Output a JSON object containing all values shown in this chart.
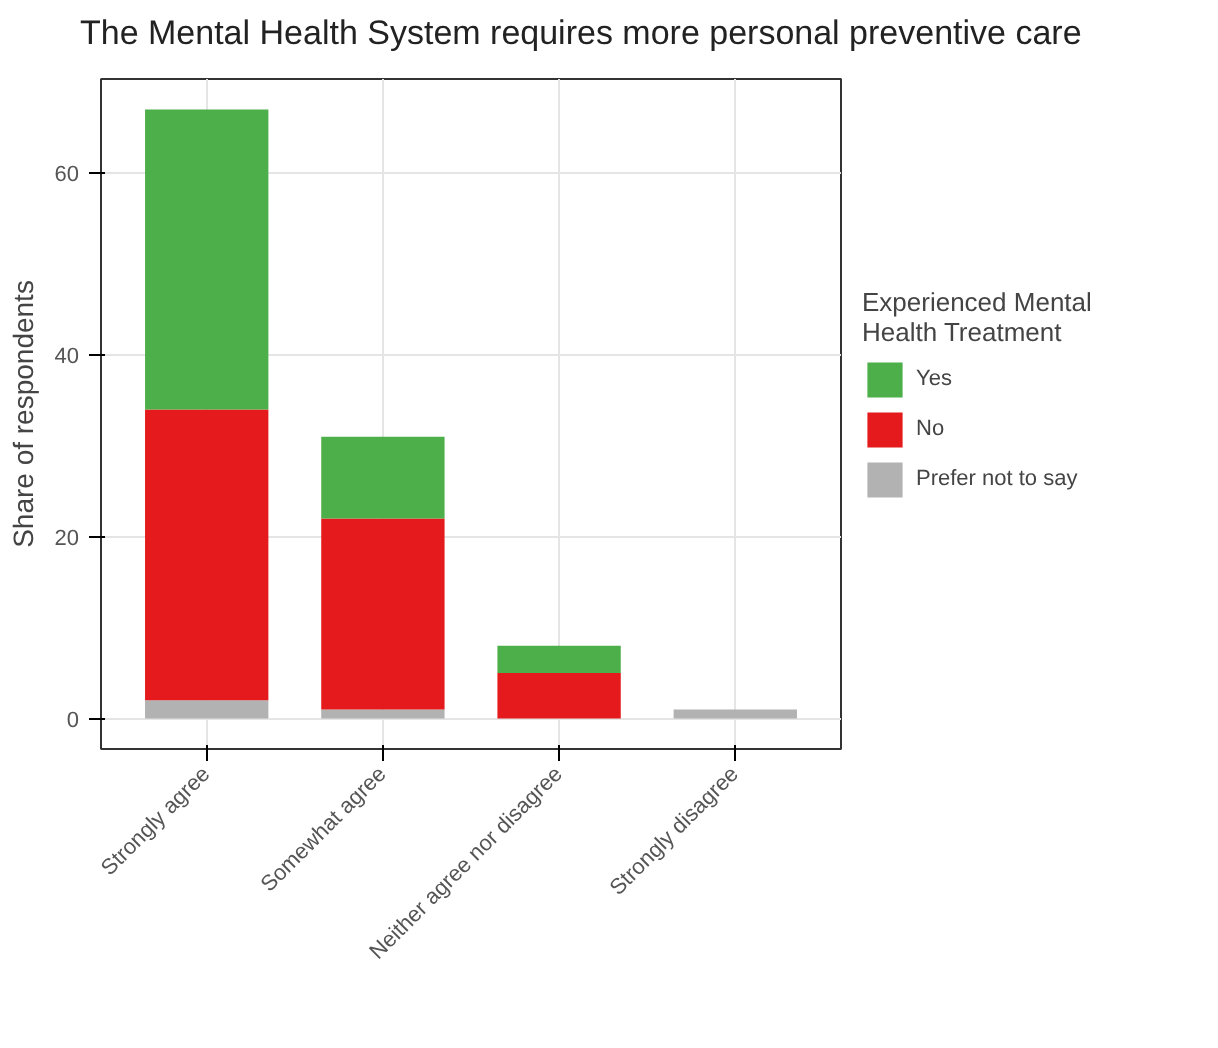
{
  "chart_data": {
    "type": "bar",
    "title": "The Mental Health System requires more personal preventive care",
    "ylabel": "Share of respondents",
    "legend_title": "Experienced Mental Health Treatment",
    "categories": [
      "Strongly agree",
      "Somewhat agree",
      "Neither agree nor disagree",
      "Strongly disagree"
    ],
    "series": [
      {
        "name": "Prefer not to say",
        "color": "#b2b2b2",
        "values": [
          2,
          1,
          0,
          1
        ]
      },
      {
        "name": "No",
        "color": "#e41a1c",
        "values": [
          32,
          21,
          5,
          0
        ]
      },
      {
        "name": "Yes",
        "color": "#4daf4a",
        "values": [
          33,
          9,
          3,
          0
        ]
      }
    ],
    "stacked": true,
    "ylim": [
      -3.35,
      70.35
    ],
    "yticks": [
      0,
      20,
      40,
      60
    ],
    "grid": true,
    "legend": "right"
  }
}
